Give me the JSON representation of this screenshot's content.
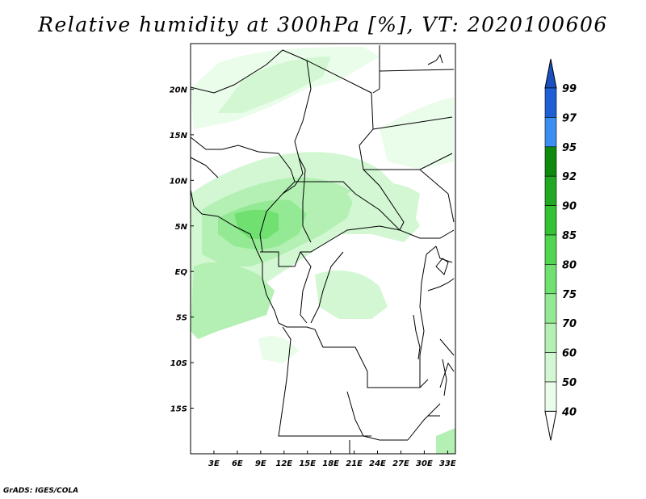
{
  "title": "Relative humidity at 300hPa [%], VT: 2020100606",
  "credit": "GrADS: IGES/COLA",
  "map": {
    "lon_range": [
      0,
      34
    ],
    "lat_range": [
      -20,
      25
    ],
    "lon_ticks": [
      "3E",
      "6E",
      "9E",
      "12E",
      "15E",
      "18E",
      "21E",
      "24E",
      "27E",
      "30E",
      "33E"
    ],
    "lat_ticks": [
      "20N",
      "15N",
      "10N",
      "5N",
      "EQ",
      "5S",
      "10S",
      "15S"
    ]
  },
  "colorbar": {
    "labels": [
      "99",
      "97",
      "95",
      "92",
      "90",
      "85",
      "80",
      "75",
      "70",
      "60",
      "50",
      "40"
    ],
    "colors": {
      "97-99": "#1f5fd6",
      "95-97": "#3c8ef0",
      "92-95": "#0f8a0f",
      "90-92": "#22a822",
      "85-90": "#35c235",
      "80-85": "#52d652",
      "75-80": "#70e070",
      "70-75": "#94ea94",
      "60-70": "#b4f0b4",
      "50-60": "#d2f7d2",
      "40-50": "#eafcea"
    }
  }
}
